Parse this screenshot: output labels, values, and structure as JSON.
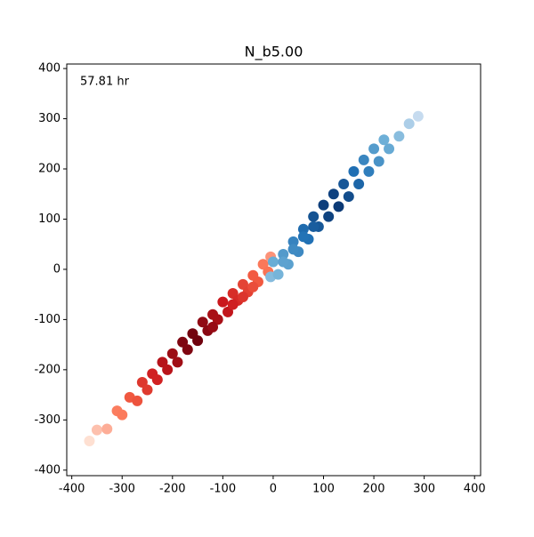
{
  "chart_data": {
    "type": "scatter",
    "title": "N_b5.00",
    "annotation": "57.81 hr",
    "xlim": [
      -410,
      412
    ],
    "ylim": [
      -411,
      409
    ],
    "xticks": [
      -400,
      -300,
      -200,
      -100,
      0,
      100,
      200,
      300,
      400
    ],
    "yticks": [
      -400,
      -300,
      -200,
      -100,
      0,
      100,
      200,
      300,
      400
    ],
    "series": [
      {
        "colormap": "Reds",
        "color": "#ef3b2c",
        "x": [
          -365,
          -350,
          -330,
          -310,
          -300,
          -285,
          -270,
          -260,
          -250,
          -240,
          -230,
          -220,
          -210,
          -200,
          -190,
          -180,
          -170,
          -160,
          -150,
          -140,
          -130,
          -120,
          -110,
          -100,
          -90,
          -80,
          -70,
          -60,
          -50,
          -40,
          -30,
          -20,
          -10,
          -5,
          -120,
          -80,
          -60,
          -40
        ],
        "values": [
          -342,
          -320,
          -318,
          -282,
          -290,
          -255,
          -262,
          -225,
          -240,
          -208,
          -220,
          -185,
          -200,
          -168,
          -185,
          -145,
          -160,
          -128,
          -142,
          -105,
          -122,
          -90,
          -100,
          -65,
          -85,
          -48,
          -62,
          -30,
          -45,
          -12,
          -25,
          10,
          -5,
          25,
          -115,
          -70,
          -55,
          -35
        ]
      },
      {
        "colormap": "Blues",
        "color": "#2171b5",
        "x": [
          -5,
          0,
          10,
          20,
          30,
          40,
          50,
          60,
          70,
          80,
          90,
          100,
          110,
          120,
          130,
          140,
          150,
          160,
          170,
          180,
          190,
          200,
          210,
          220,
          230,
          250,
          270,
          288,
          40,
          60,
          80,
          20
        ],
        "values": [
          -15,
          15,
          -10,
          30,
          10,
          55,
          35,
          80,
          60,
          105,
          85,
          128,
          105,
          150,
          125,
          170,
          145,
          195,
          170,
          218,
          195,
          240,
          215,
          258,
          240,
          265,
          290,
          305,
          40,
          65,
          85,
          15
        ]
      }
    ]
  }
}
